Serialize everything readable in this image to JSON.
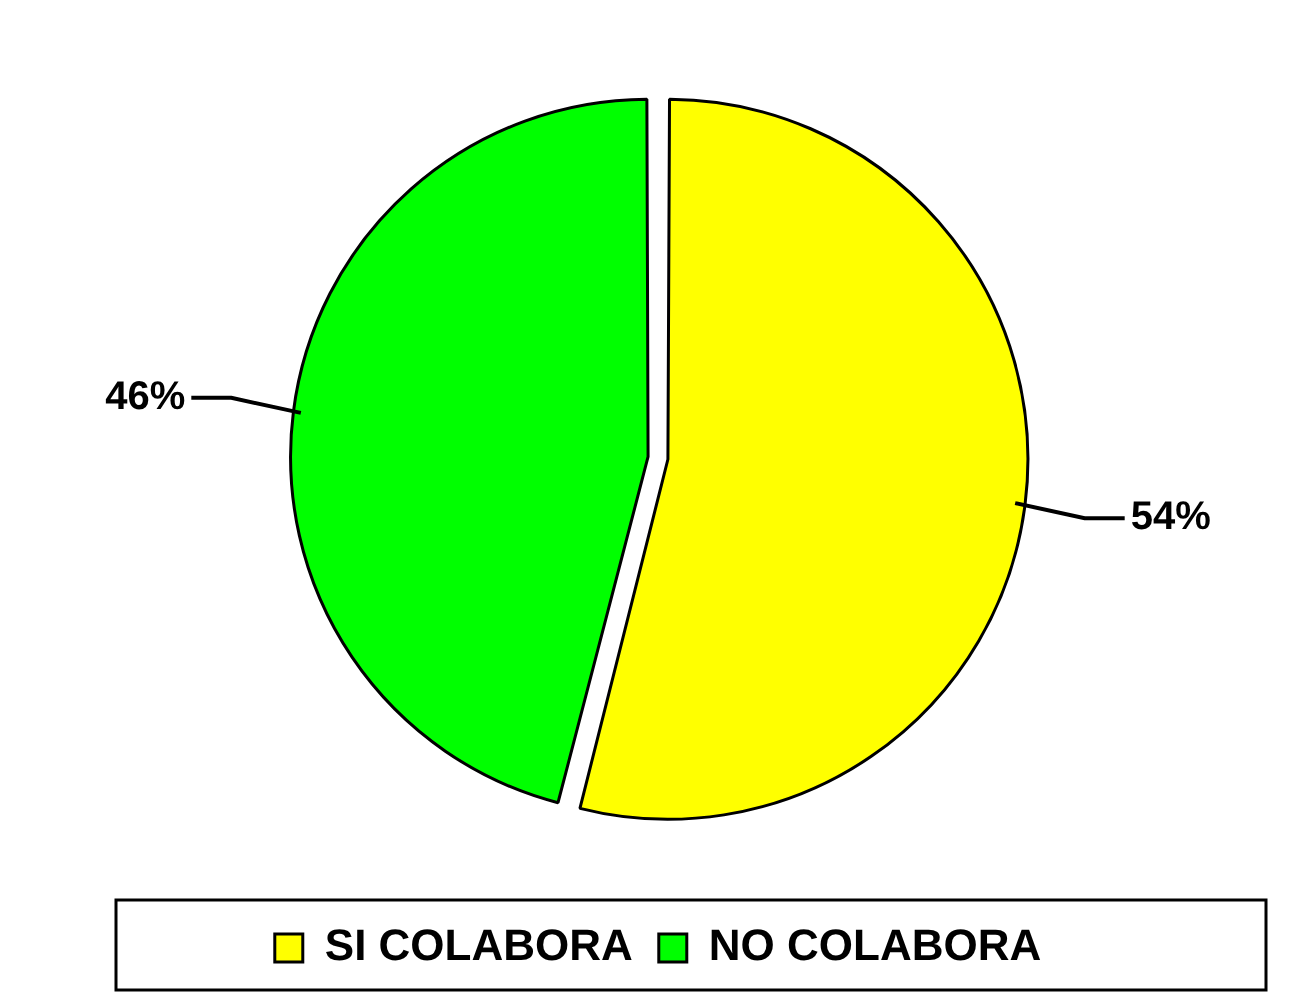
{
  "chart_data": {
    "type": "pie",
    "categories": [
      "SI COLABORA",
      "NO COLABORA"
    ],
    "values": [
      54,
      46
    ],
    "colors": [
      "#ffff00",
      "#00ff00"
    ],
    "value_labels": [
      "54%",
      "46%"
    ],
    "legend": "bottom"
  }
}
